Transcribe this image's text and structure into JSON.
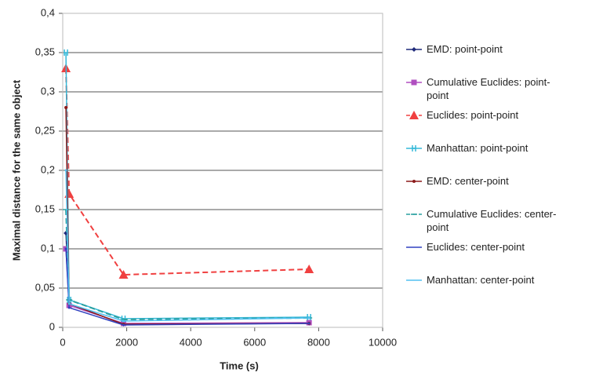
{
  "chart_data": {
    "type": "line",
    "x_label": "Time (s)",
    "y_label": "Maximal distance for the same object",
    "x": [
      100,
      200,
      1900,
      7700
    ],
    "xlim": [
      0,
      10000
    ],
    "xticks": [
      0,
      2000,
      4000,
      6000,
      8000,
      10000
    ],
    "ylim": [
      0,
      0.4
    ],
    "yticks": [
      0,
      {
        "value": 0.05,
        "label": "0,05"
      },
      {
        "value": 0.1,
        "label": "0,1"
      },
      {
        "value": 0.15,
        "label": "0,15"
      },
      {
        "value": 0.2,
        "label": "0,2"
      },
      {
        "value": 0.25,
        "label": "0,25"
      },
      {
        "value": 0.3,
        "label": "0,3"
      },
      {
        "value": 0.35,
        "label": "0,35"
      },
      {
        "value": 0.4,
        "label": "0,4"
      }
    ],
    "grid": true,
    "legend": "right",
    "series": [
      {
        "name": "EMD: point-point",
        "color": "#1f2a7a",
        "marker": "diamond",
        "dashed": false,
        "values": [
          0.12,
          0.03,
          0.004,
          0.005
        ]
      },
      {
        "name": "Cumulative Euclides: point-point",
        "color": "#b04fc0",
        "marker": "square",
        "dashed": false,
        "values": [
          0.1,
          0.028,
          0.005,
          0.006
        ]
      },
      {
        "name": "Euclides: point-point",
        "color": "#f04040",
        "marker": "triangle",
        "dashed": true,
        "values": [
          0.33,
          0.17,
          0.067,
          0.074
        ]
      },
      {
        "name": "Manhattan: point-point",
        "color": "#33b8d8",
        "marker": "bar",
        "dashed": false,
        "values": [
          0.35,
          0.035,
          0.011,
          0.013
        ]
      },
      {
        "name": "EMD: center-point",
        "color": "#8b1a1a",
        "marker": "dot",
        "dashed": false,
        "values": [
          0.28,
          0.03,
          0.004,
          0.005
        ]
      },
      {
        "name": "Cumulative Euclides: center-point",
        "color": "#2aa0a0",
        "marker": "dash",
        "dashed": true,
        "values": [
          0.15,
          0.035,
          0.01,
          0.012
        ]
      },
      {
        "name": "Euclides: center-point",
        "color": "#3040c0",
        "marker": "none",
        "dashed": false,
        "values": [
          0.1,
          0.025,
          0.003,
          0.005
        ]
      },
      {
        "name": "Manhattan: center-point",
        "color": "#50c0f0",
        "marker": "none",
        "dashed": false,
        "values": [
          0.2,
          0.03,
          0.008,
          0.012
        ]
      }
    ]
  }
}
